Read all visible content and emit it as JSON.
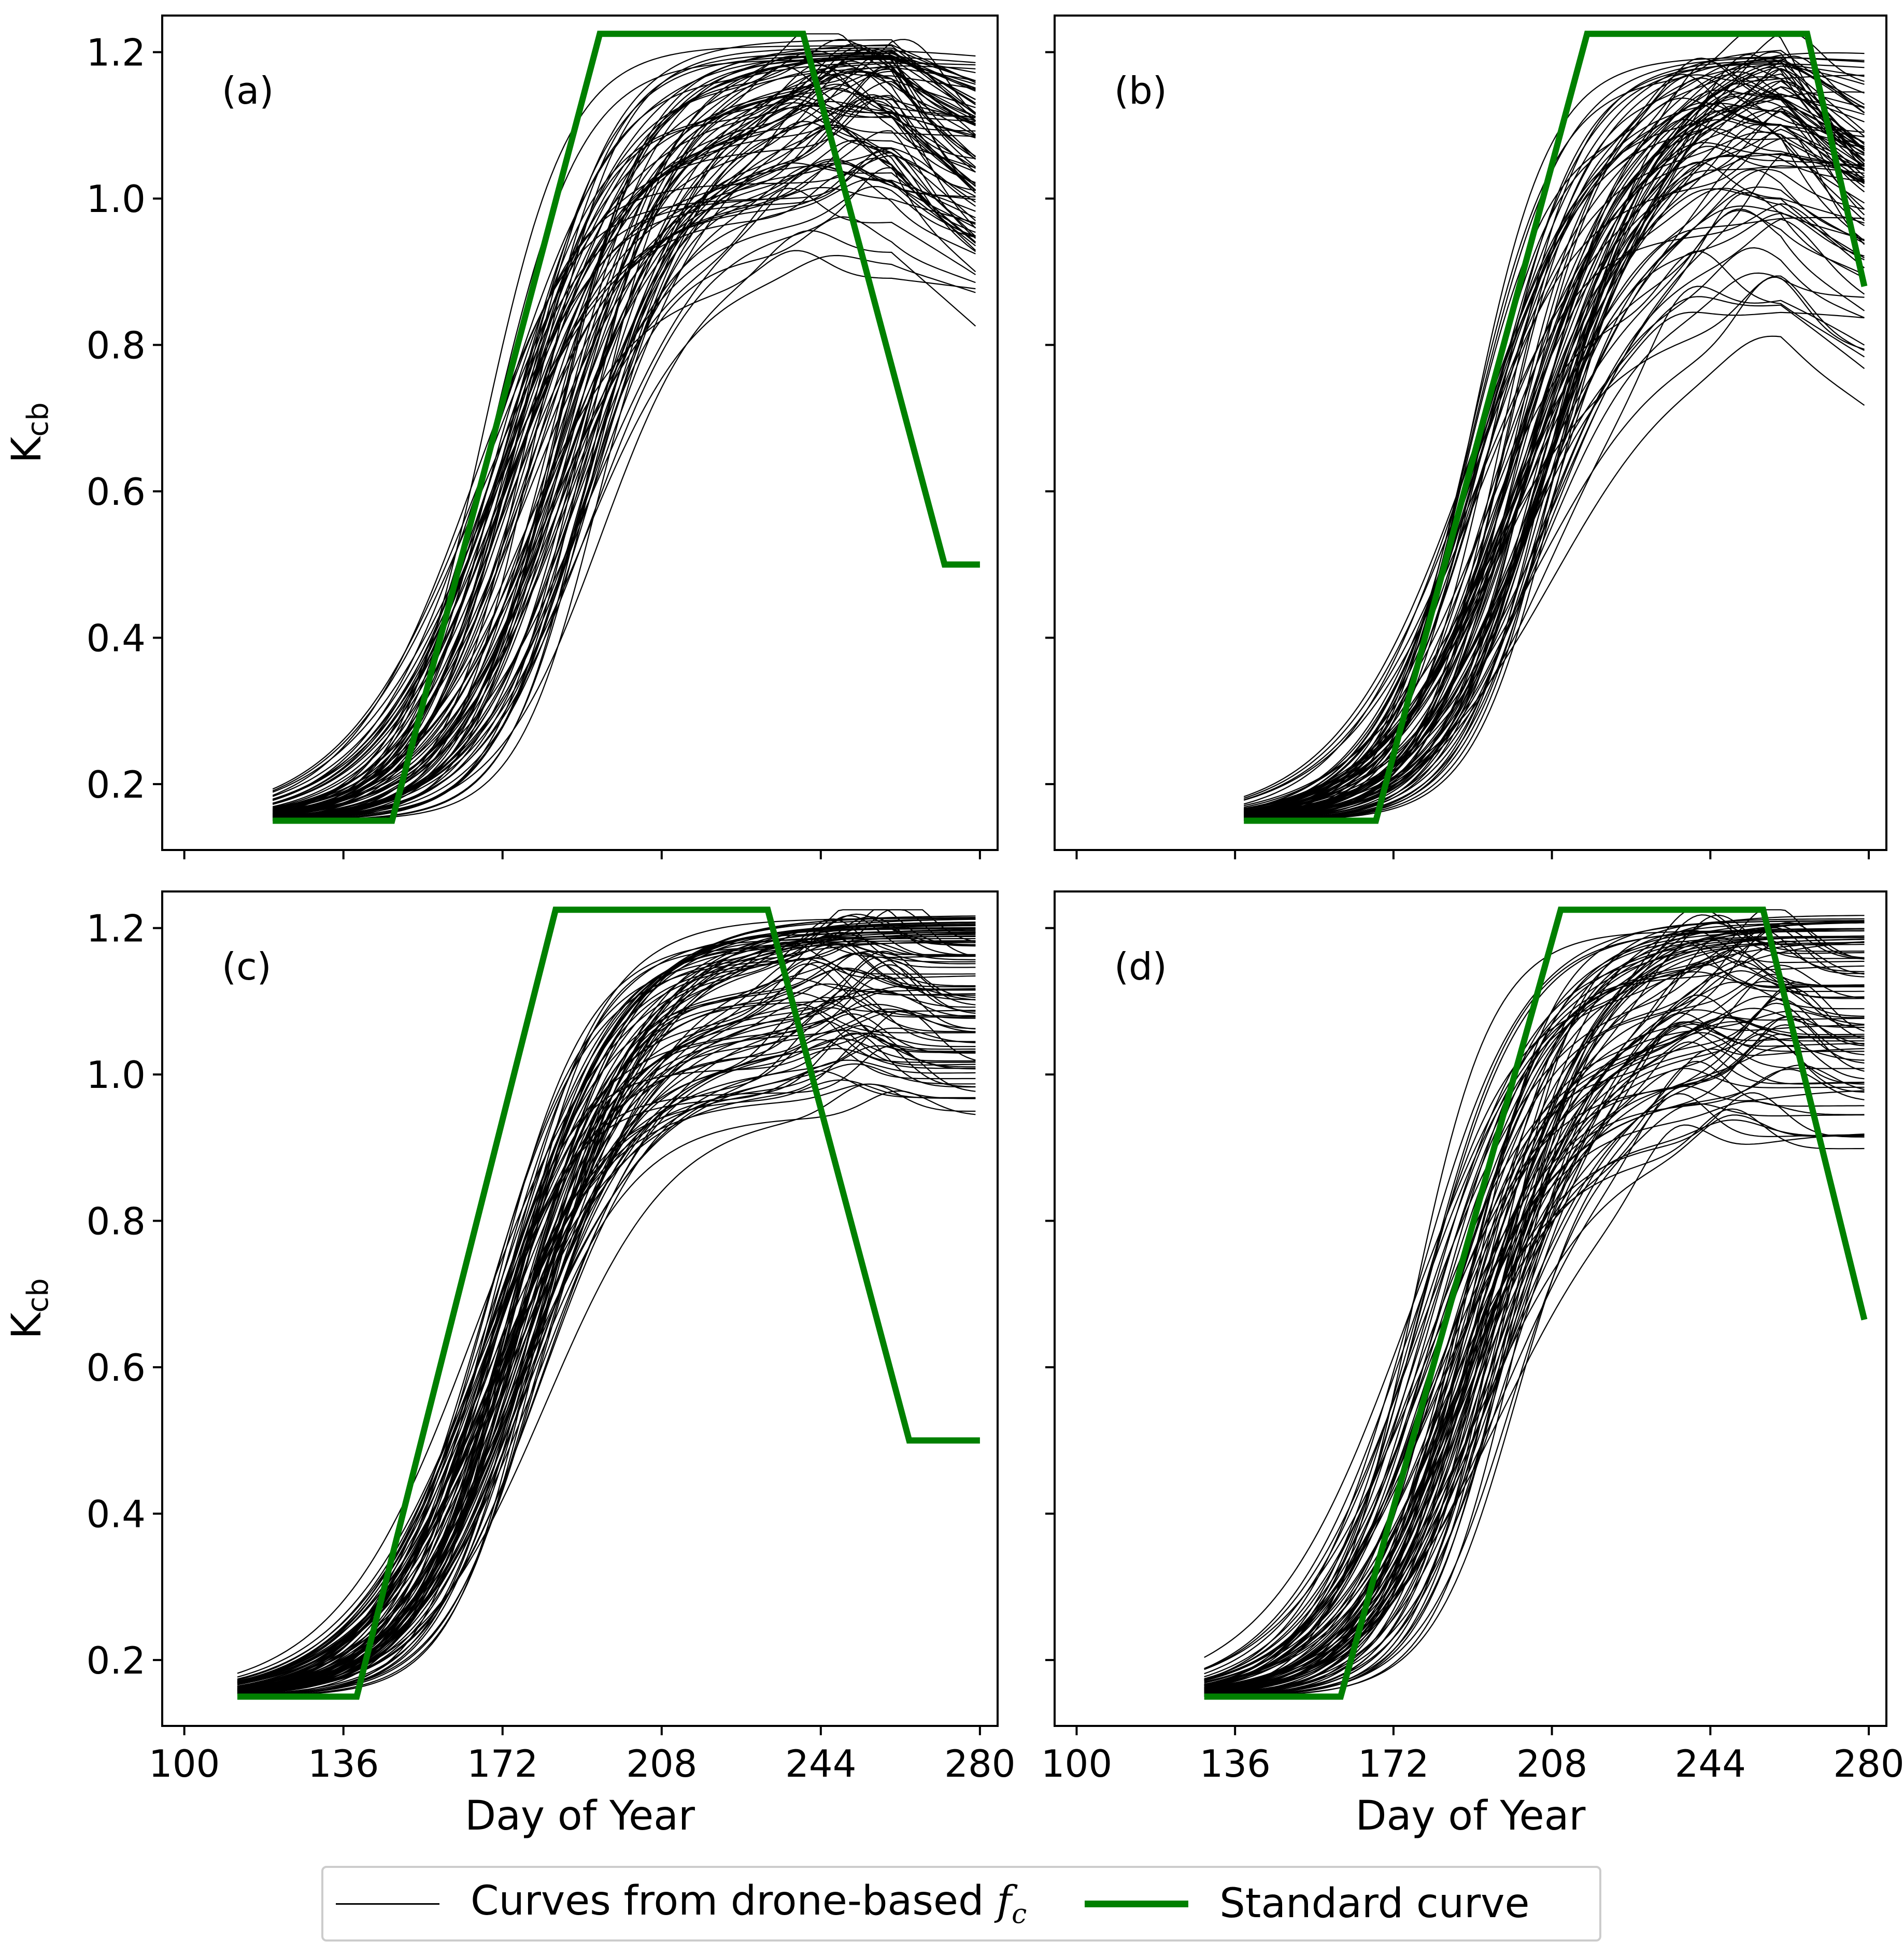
{
  "chart_data": [
    {
      "type": "line",
      "panel_label": "(a)",
      "ylabel": "K",
      "ylabel_sub": "cb",
      "xlabel": "",
      "xlim": [
        95,
        284
      ],
      "ylim": [
        0.11,
        1.25
      ],
      "xticks": [
        100,
        136,
        172,
        208,
        244,
        280
      ],
      "yticks": [
        0.2,
        0.4,
        0.6,
        0.8,
        1.0,
        1.2
      ],
      "show_xtick_labels": false,
      "show_ytick_labels": true,
      "standard_curve": {
        "x": [
          120,
          147,
          194,
          240,
          272,
          280
        ],
        "y": [
          0.15,
          0.15,
          1.225,
          1.225,
          0.5,
          0.5
        ]
      },
      "drone_curves": {
        "start_x": 120,
        "end_x": 279,
        "n": 90,
        "mid_range": [
          165,
          195
        ],
        "plateau_range": [
          0.85,
          1.22
        ],
        "early_range": [
          0.16,
          0.3
        ]
      }
    },
    {
      "type": "line",
      "panel_label": "(b)",
      "ylabel": "",
      "ylabel_sub": "",
      "xlabel": "",
      "xlim": [
        95,
        284
      ],
      "ylim": [
        0.11,
        1.25
      ],
      "xticks": [
        100,
        136,
        172,
        208,
        244,
        280
      ],
      "yticks": [
        0.2,
        0.4,
        0.6,
        0.8,
        1.0,
        1.2
      ],
      "show_xtick_labels": false,
      "show_ytick_labels": false,
      "standard_curve": {
        "x": [
          138,
          168,
          216,
          266,
          279
        ],
        "y": [
          0.15,
          0.15,
          1.225,
          1.225,
          0.88
        ]
      },
      "drone_curves": {
        "start_x": 138,
        "end_x": 279,
        "n": 90,
        "mid_range": [
          188,
          210
        ],
        "plateau_range": [
          0.75,
          1.22
        ],
        "early_range": [
          0.16,
          0.28
        ]
      }
    },
    {
      "type": "line",
      "panel_label": "(c)",
      "ylabel": "K",
      "ylabel_sub": "cb",
      "xlabel": "Day of Year",
      "xlim": [
        95,
        284
      ],
      "ylim": [
        0.11,
        1.25
      ],
      "xticks": [
        100,
        136,
        172,
        208,
        244,
        280
      ],
      "yticks": [
        0.2,
        0.4,
        0.6,
        0.8,
        1.0,
        1.2
      ],
      "show_xtick_labels": true,
      "show_ytick_labels": true,
      "standard_curve": {
        "x": [
          112,
          139,
          184,
          232,
          264,
          280
        ],
        "y": [
          0.15,
          0.15,
          1.225,
          1.225,
          0.5,
          0.5
        ]
      },
      "drone_curves": {
        "start_x": 112,
        "end_x": 279,
        "n": 90,
        "mid_range": [
          166,
          182
        ],
        "plateau_range": [
          0.92,
          1.22
        ],
        "early_range": [
          0.17,
          0.29
        ]
      }
    },
    {
      "type": "line",
      "panel_label": "(d)",
      "ylabel": "",
      "ylabel_sub": "",
      "xlabel": "Day of Year",
      "xlim": [
        95,
        284
      ],
      "ylim": [
        0.11,
        1.25
      ],
      "xticks": [
        100,
        136,
        172,
        208,
        244,
        280
      ],
      "yticks": [
        0.2,
        0.4,
        0.6,
        0.8,
        1.0,
        1.2
      ],
      "show_xtick_labels": true,
      "show_ytick_labels": false,
      "standard_curve": {
        "x": [
          129,
          160,
          210,
          256,
          279
        ],
        "y": [
          0.15,
          0.15,
          1.225,
          1.225,
          0.665
        ]
      },
      "drone_curves": {
        "start_x": 129,
        "end_x": 279,
        "n": 90,
        "mid_range": [
          175,
          200
        ],
        "plateau_range": [
          0.82,
          1.22
        ],
        "early_range": [
          0.16,
          0.25
        ]
      }
    }
  ],
  "legend": {
    "drone_label_prefix": "Curves from drone-based ",
    "drone_label_var": "f",
    "drone_label_sub": "c",
    "standard_label": "Standard curve"
  },
  "colors": {
    "standard": "#008000",
    "drone": "#000000"
  }
}
